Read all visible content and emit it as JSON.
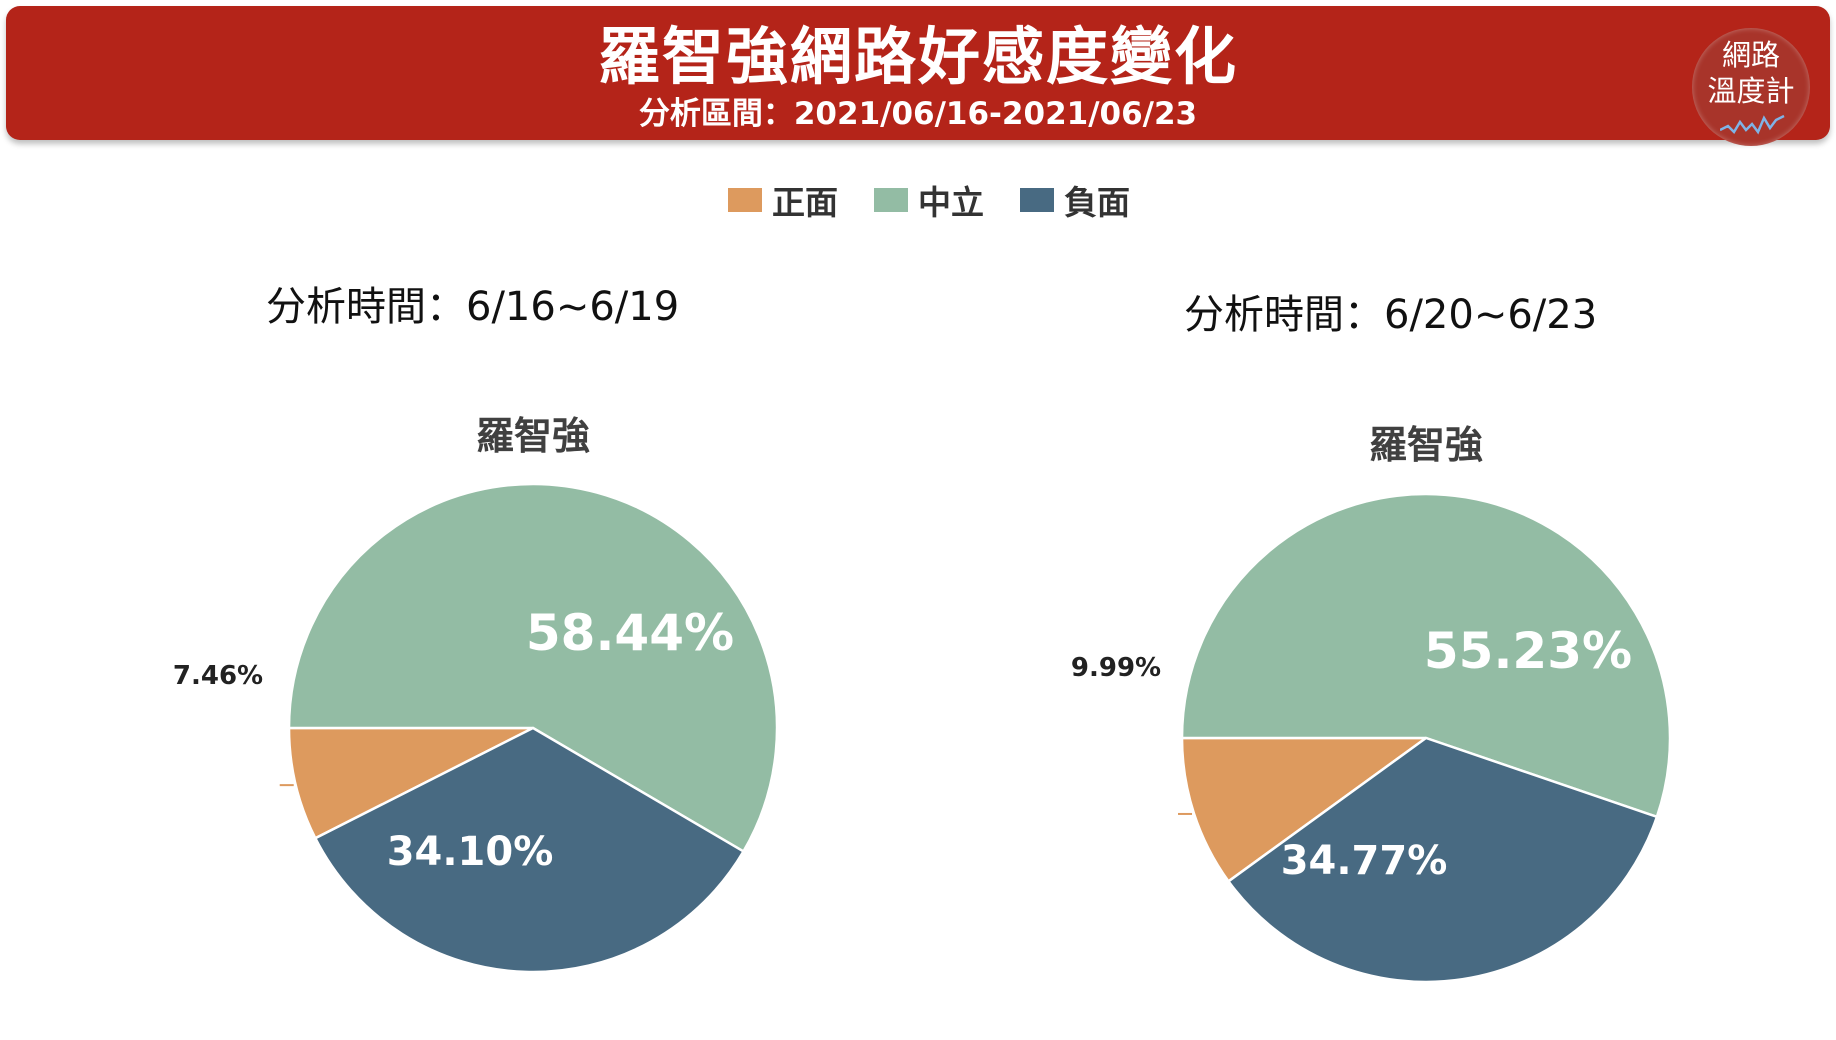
{
  "header": {
    "title": "羅智強網路好感度變化",
    "subtitle": "分析區間：2021/06/16-2021/06/23",
    "badge_line1": "網路",
    "badge_line2": "溫度計"
  },
  "legend": [
    {
      "label": "正面",
      "color": "#dd9a5e"
    },
    {
      "label": "中立",
      "color": "#93bca4"
    },
    {
      "label": "負面",
      "color": "#486a82"
    }
  ],
  "chart_data": [
    {
      "type": "pie",
      "period_label": "分析時間：6/16~6/19",
      "title": "羅智強",
      "slices": [
        {
          "label": "正面",
          "value": 7.46,
          "display": "7.46%",
          "color": "#dd9a5e"
        },
        {
          "label": "中立",
          "value": 58.44,
          "display": "58.44%",
          "color": "#93bca4"
        },
        {
          "label": "負面",
          "value": 34.1,
          "display": "34.10%",
          "color": "#486a82"
        }
      ]
    },
    {
      "type": "pie",
      "period_label": "分析時間：6/20~6/23",
      "title": "羅智強",
      "slices": [
        {
          "label": "正面",
          "value": 9.99,
          "display": "9.99%",
          "color": "#dd9a5e"
        },
        {
          "label": "中立",
          "value": 55.23,
          "display": "55.23%",
          "color": "#93bca4"
        },
        {
          "label": "負面",
          "value": 34.77,
          "display": "34.77%",
          "color": "#486a82"
        }
      ]
    }
  ]
}
